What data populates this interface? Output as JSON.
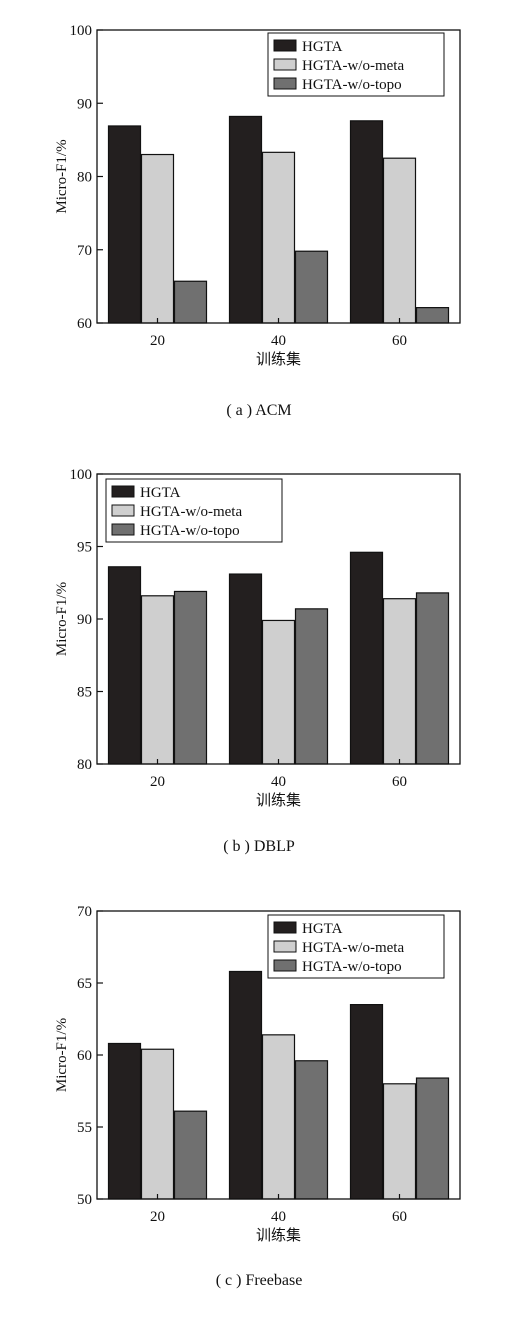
{
  "chart_data": [
    {
      "type": "bar",
      "caption": "( a ) ACM",
      "categories": [
        "20",
        "40",
        "60"
      ],
      "xlabel": "训练集",
      "ylabel": "Micro-F1/%",
      "ylim": [
        60,
        100
      ],
      "yticks": [
        "60",
        "70",
        "80",
        "90",
        "100"
      ],
      "legend_position": "top-right",
      "series": [
        {
          "name": "HGTA",
          "color": "#231f1f",
          "values": [
            86.9,
            88.2,
            87.6
          ]
        },
        {
          "name": "HGTA-w/o-meta",
          "color": "#cfcfcf",
          "values": [
            83.0,
            83.3,
            82.5
          ]
        },
        {
          "name": "HGTA-w/o-topo",
          "color": "#707070",
          "values": [
            65.7,
            69.8,
            62.1
          ]
        }
      ]
    },
    {
      "type": "bar",
      "caption": "( b ) DBLP",
      "categories": [
        "20",
        "40",
        "60"
      ],
      "xlabel": "训练集",
      "ylabel": "Micro-F1/%",
      "ylim": [
        80,
        100
      ],
      "yticks": [
        "80",
        "85",
        "90",
        "95",
        "100"
      ],
      "legend_position": "top-left",
      "series": [
        {
          "name": "HGTA",
          "color": "#231f1f",
          "values": [
            93.6,
            93.1,
            94.6
          ]
        },
        {
          "name": "HGTA-w/o-meta",
          "color": "#cfcfcf",
          "values": [
            91.6,
            89.9,
            91.4
          ]
        },
        {
          "name": "HGTA-w/o-topo",
          "color": "#707070",
          "values": [
            91.9,
            90.7,
            91.8
          ]
        }
      ]
    },
    {
      "type": "bar",
      "caption": "( c ) Freebase",
      "categories": [
        "20",
        "40",
        "60"
      ],
      "xlabel": "训练集",
      "ylabel": "Micro-F1/%",
      "ylim": [
        50,
        70
      ],
      "yticks": [
        "50",
        "55",
        "60",
        "65",
        "70"
      ],
      "legend_position": "top-right",
      "series": [
        {
          "name": "HGTA",
          "color": "#231f1f",
          "values": [
            60.8,
            65.8,
            63.5
          ]
        },
        {
          "name": "HGTA-w/o-meta",
          "color": "#cfcfcf",
          "values": [
            60.4,
            61.4,
            58.0
          ]
        },
        {
          "name": "HGTA-w/o-topo",
          "color": "#707070",
          "values": [
            56.1,
            59.6,
            58.4
          ]
        }
      ]
    }
  ]
}
